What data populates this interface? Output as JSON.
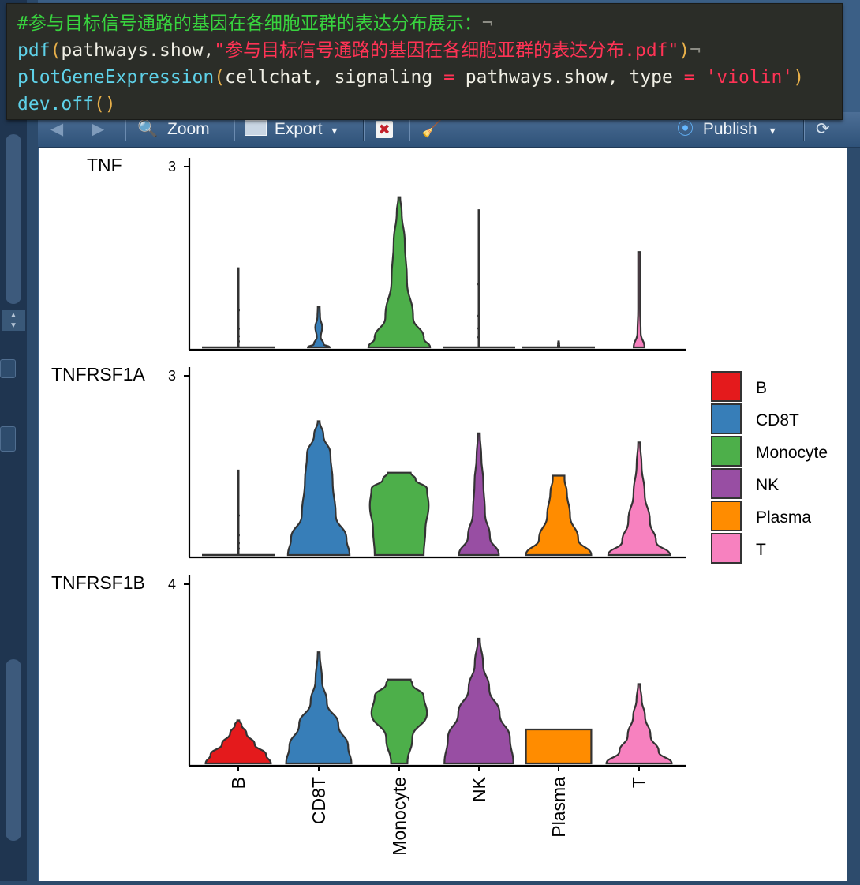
{
  "code": {
    "line1_comment": "#参与目标信号通路的基因在各细胞亚群的表达分布展示：",
    "line2_fn": "pdf",
    "line2_open": "(",
    "line2_arg": "pathways.show,",
    "line2_str": "\"参与目标信号通路的基因在各细胞亚群的表达分布.pdf\"",
    "line2_close": ")",
    "line3_fn": "plotGeneExpression",
    "line3_open": "(",
    "line3_args1": "cellchat, signaling ",
    "line3_eq1": "=",
    "line3_args2": " pathways.show, type ",
    "line3_eq2": "=",
    "line3_str": " 'violin'",
    "line3_close": ")",
    "line4_fn": "dev.off",
    "line4_parens": "()",
    "pilcrow": "¬"
  },
  "toolbar": {
    "zoom_label": "Zoom",
    "export_label": "Export",
    "export_caret": "▾",
    "publish_label": "Publish",
    "publish_caret": "▾"
  },
  "colors": {
    "B": "#E41A1C",
    "CD8T": "#377EB8",
    "Monocyte": "#4DAF4A",
    "NK": "#984EA3",
    "Plasma": "#FF8C00",
    "T": "#F781BF"
  },
  "chart_data": {
    "type": "violin",
    "categories": [
      "B",
      "CD8T",
      "Monocyte",
      "NK",
      "Plasma",
      "T"
    ],
    "panels": [
      {
        "gene": "TNF",
        "ymax_tick": 3,
        "max_values": [
          1.35,
          0.7,
          2.5,
          2.3,
          0.15,
          1.6
        ],
        "body_widths": [
          0,
          0.3,
          0.85,
          0,
          0,
          0.15
        ]
      },
      {
        "gene": "TNFRSF1A",
        "ymax_tick": 3,
        "max_values": [
          1.45,
          2.25,
          1.4,
          2.05,
          1.35,
          1.9
        ],
        "body_widths": [
          0,
          0.85,
          0.9,
          0.55,
          0.9,
          0.85
        ]
      },
      {
        "gene": "TNFRSF1B",
        "ymax_tick": 4,
        "max_values": [
          1.0,
          2.5,
          1.9,
          2.8,
          0.8,
          1.8
        ],
        "body_widths": [
          0.9,
          0.9,
          0.9,
          0.95,
          0.9,
          0.9
        ]
      }
    ],
    "x_tick_labels": [
      "B",
      "CD8T",
      "Monocyte",
      "NK",
      "Plasma",
      "T"
    ],
    "legend": {
      "placement": "right",
      "entries": [
        "B",
        "CD8T",
        "Monocyte",
        "NK",
        "Plasma",
        "T"
      ]
    }
  }
}
